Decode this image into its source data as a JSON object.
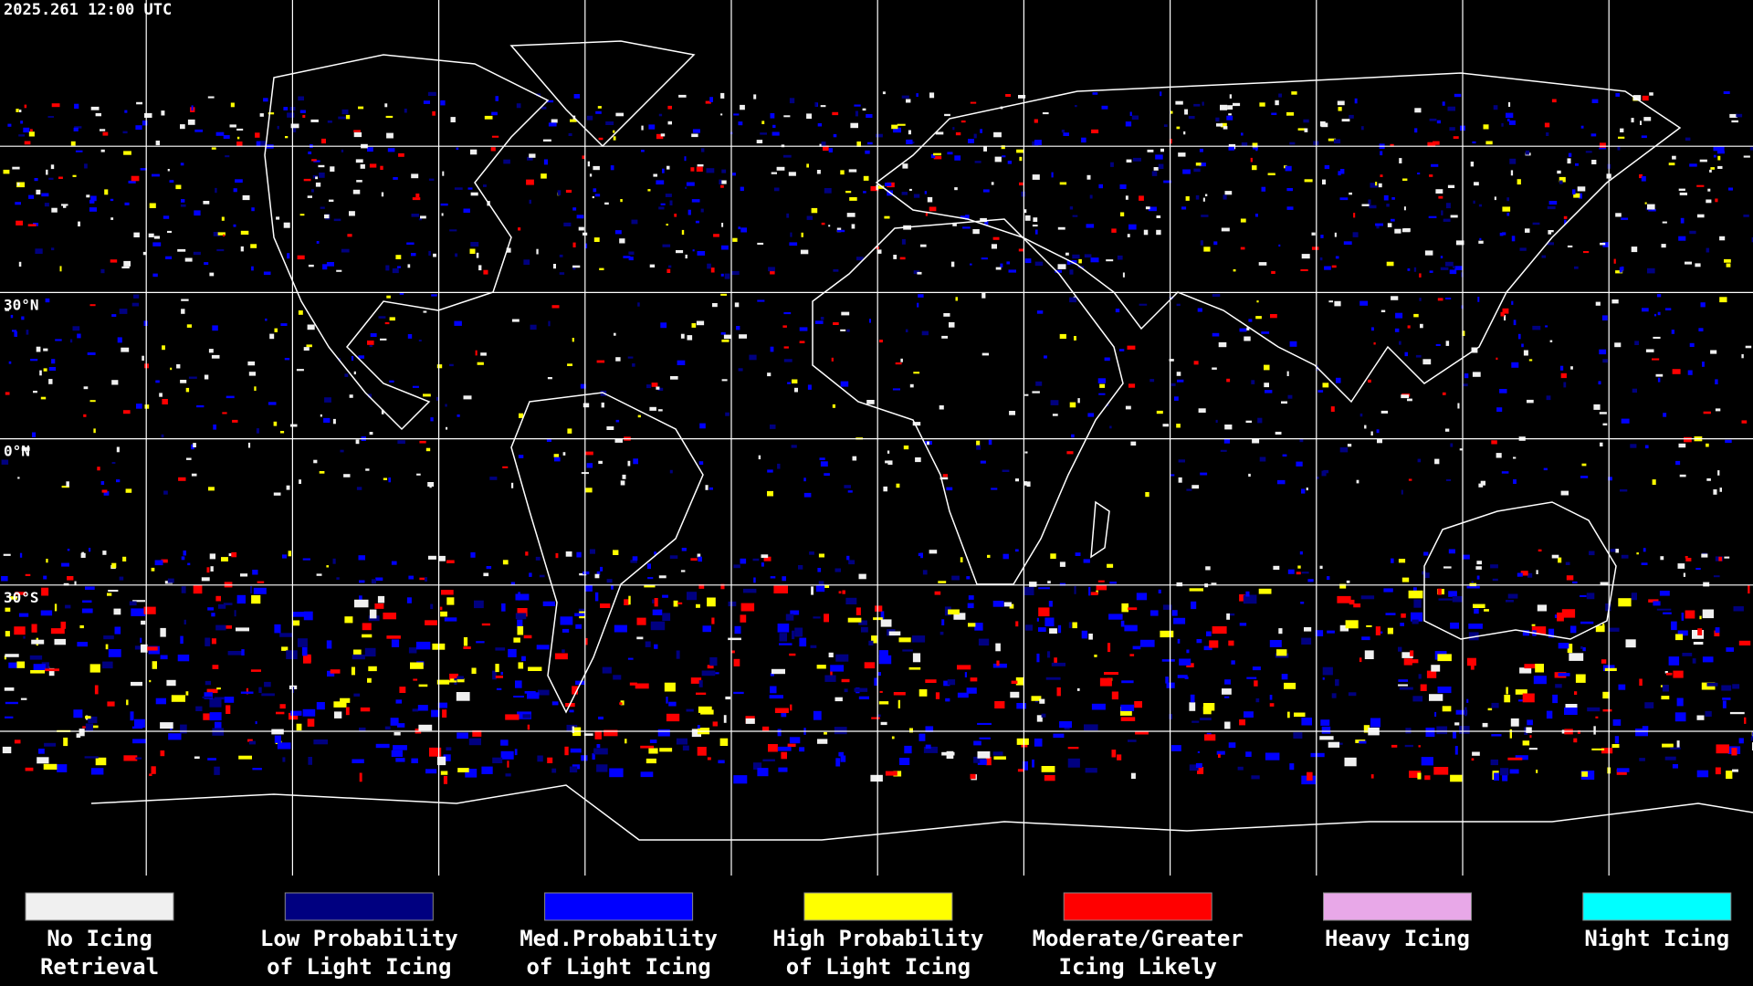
{
  "header": {
    "timestamp": "2025.261 12:00 UTC"
  },
  "latitude_labels": [
    "30°N",
    "0°N",
    "30°S"
  ],
  "legend": [
    {
      "color": "#f0f0f0",
      "lines": [
        "No Icing",
        "Retrieval"
      ]
    },
    {
      "color": "#000080",
      "lines": [
        "Low Probability",
        "of Light Icing"
      ]
    },
    {
      "color": "#0000ff",
      "lines": [
        "Med.Probability",
        "of Light Icing"
      ]
    },
    {
      "color": "#ffff00",
      "lines": [
        "High Probability",
        "of Light Icing"
      ]
    },
    {
      "color": "#ff0000",
      "lines": [
        "Moderate/Greater",
        "Icing Likely"
      ]
    },
    {
      "color": "#e8a8e8",
      "lines": [
        "Heavy Icing"
      ]
    },
    {
      "color": "#00ffff",
      "lines": [
        "Night Icing"
      ]
    }
  ]
}
